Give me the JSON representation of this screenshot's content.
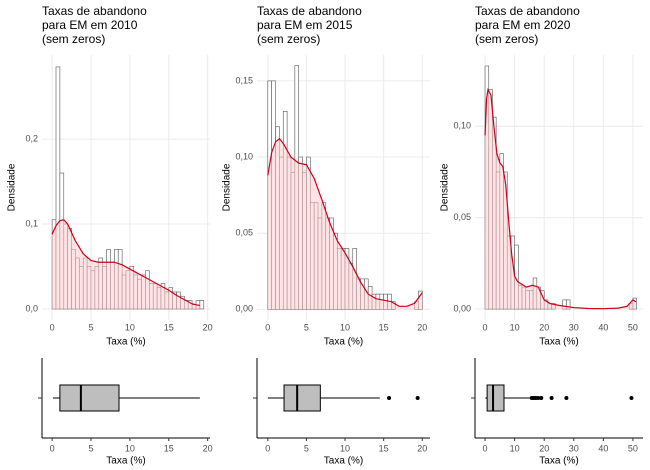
{
  "chart_data": [
    {
      "type": "histogram",
      "title": [
        "Taxas de abandono",
        "para EM em 2010",
        "(sem zeros)"
      ],
      "xlabel": "Taxa (%)",
      "ylabel": "Densidade",
      "bins": [
        0,
        0.5,
        1,
        1.5,
        2,
        2.5,
        3,
        3.5,
        4,
        4.5,
        5,
        5.5,
        6,
        6.5,
        7,
        7.5,
        8,
        8.5,
        9,
        9.5,
        10,
        10.5,
        11,
        11.5,
        12,
        12.5,
        13,
        13.5,
        14,
        14.5,
        15,
        15.5,
        16,
        16.5,
        17,
        17.5,
        18,
        18.5,
        19,
        19.5
      ],
      "values": [
        0.105,
        0.285,
        0.16,
        0.1,
        0.095,
        0.07,
        0.06,
        0.05,
        0.06,
        0.05,
        0.045,
        0.05,
        0.06,
        0.05,
        0.07,
        0.055,
        0.07,
        0.07,
        0.04,
        0.045,
        0.05,
        0.04,
        0.035,
        0.04,
        0.045,
        0.03,
        0.03,
        0.025,
        0.03,
        0.02,
        0.025,
        0.02,
        0.02,
        0.015,
        0.01,
        0.01,
        0.005,
        0.01,
        0.01
      ],
      "density": {
        "x": [
          0,
          0.5,
          1,
          1.5,
          2,
          3,
          4,
          5,
          6,
          7,
          8,
          9,
          10,
          11,
          12,
          13,
          14,
          15,
          16,
          17,
          18,
          19
        ],
        "y": [
          0.088,
          0.098,
          0.104,
          0.105,
          0.1,
          0.08,
          0.065,
          0.057,
          0.055,
          0.055,
          0.055,
          0.052,
          0.047,
          0.042,
          0.037,
          0.032,
          0.027,
          0.022,
          0.016,
          0.011,
          0.006,
          0.004
        ]
      },
      "xlim": [
        -1.3,
        20.3
      ],
      "ylim": [
        -0.013,
        0.299
      ],
      "xticks": [
        0,
        5,
        10,
        15,
        20
      ],
      "yticks": [
        {
          "value": 0,
          "label": "0,0"
        },
        {
          "value": 0.1,
          "label": "0,1"
        },
        {
          "value": 0.2,
          "label": "0,2"
        }
      ],
      "grid": true,
      "color": "#ffffff",
      "line_color": "#c8001e",
      "area_color": "#ffc8cc"
    },
    {
      "type": "histogram",
      "title": [
        "Taxas de abandono",
        "para EM em 2015",
        "(sem zeros)"
      ],
      "xlabel": "Taxa (%)",
      "ylabel": "Densidade",
      "bins": [
        0,
        0.5,
        1,
        1.5,
        2,
        2.5,
        3,
        3.5,
        4,
        4.5,
        5,
        5.5,
        6,
        6.5,
        7,
        7.5,
        8,
        8.5,
        9,
        9.5,
        10,
        10.5,
        11,
        11.5,
        12,
        12.5,
        13,
        13.5,
        14,
        14.5,
        15,
        15.5,
        16,
        16.5,
        17,
        17.5,
        18,
        18.5,
        19,
        19.5,
        20
      ],
      "values": [
        0.15,
        0.15,
        0.12,
        0.1,
        0.13,
        0.1,
        0.09,
        0.16,
        0.1,
        0.09,
        0.1,
        0.07,
        0.07,
        0.06,
        0.07,
        0.06,
        0.06,
        0.05,
        0.04,
        0.04,
        0.04,
        0.03,
        0.04,
        0.02,
        0.02,
        0.02,
        0.015,
        0.01,
        0.01,
        0.01,
        0.01,
        0.01,
        0.005,
        0,
        0,
        0,
        0,
        0,
        0.005,
        0.012
      ],
      "density": {
        "x": [
          0,
          0.5,
          1,
          1.5,
          2,
          3,
          4,
          5,
          6,
          7,
          8,
          9,
          10,
          11,
          12,
          13,
          14,
          15,
          16,
          17,
          18,
          19,
          20
        ],
        "y": [
          0.088,
          0.103,
          0.11,
          0.112,
          0.109,
          0.1,
          0.096,
          0.095,
          0.086,
          0.072,
          0.057,
          0.045,
          0.037,
          0.028,
          0.018,
          0.01,
          0.007,
          0.006,
          0.005,
          0.002,
          0.002,
          0.004,
          0.011
        ]
      },
      "xlim": [
        -1.4,
        21
      ],
      "ylim": [
        -0.007,
        0.167
      ],
      "xticks": [
        0,
        5,
        10,
        15,
        20
      ],
      "yticks": [
        {
          "value": 0,
          "label": "0,00"
        },
        {
          "value": 0.05,
          "label": "0,05"
        },
        {
          "value": 0.1,
          "label": "0,10"
        },
        {
          "value": 0.15,
          "label": "0,15"
        }
      ],
      "grid": true,
      "color": "#ffffff",
      "line_color": "#c8001e",
      "area_color": "#ffc8cc"
    },
    {
      "type": "histogram",
      "title": [
        "Taxas de abandono",
        "para EM em 2020",
        "(sem zeros)"
      ],
      "xlabel": "Taxa (%)",
      "ylabel": "Densidade",
      "bins": [
        0,
        1.25,
        2.5,
        3.75,
        5,
        6.25,
        7.5,
        8.75,
        10,
        11.25,
        12.5,
        13.75,
        15,
        16.25,
        17.5,
        18.75,
        20,
        21.25,
        22.5,
        23.75,
        25,
        26.25,
        27.5,
        28.75,
        30,
        31.25,
        32.5,
        33.75,
        35,
        36.25,
        37.5,
        38.75,
        40,
        41.25,
        42.5,
        43.75,
        45,
        46.25,
        47.5,
        48.75,
        50,
        51.25
      ],
      "values": [
        0.133,
        0.12,
        0.105,
        0.075,
        0.085,
        0.075,
        0.04,
        0.04,
        0.035,
        0.013,
        0.012,
        0.01,
        0.01,
        0.017,
        0.012,
        0.01,
        0.005,
        0.003,
        0.003,
        0,
        0,
        0.005,
        0.005,
        0,
        0,
        0,
        0,
        0,
        0,
        0,
        0,
        0,
        0,
        0,
        0,
        0,
        0,
        0,
        0,
        0.003,
        0.006
      ],
      "density": {
        "x": [
          0,
          0.5,
          1,
          2,
          3,
          4,
          5,
          6,
          7,
          8,
          9,
          10,
          11,
          12,
          13,
          14,
          16,
          18,
          20,
          22,
          25,
          30,
          35,
          40,
          45,
          48,
          50,
          51
        ],
        "y": [
          0.095,
          0.115,
          0.12,
          0.117,
          0.1,
          0.085,
          0.08,
          0.078,
          0.068,
          0.048,
          0.03,
          0.018,
          0.015,
          0.014,
          0.013,
          0.012,
          0.013,
          0.012,
          0.005,
          0.003,
          0.002,
          0.0008,
          0.0003,
          0.0002,
          0.0005,
          0.0015,
          0.005,
          0.004
        ]
      },
      "xlim": [
        -3.4,
        53.4
      ],
      "ylim": [
        -0.006,
        0.139
      ],
      "xticks": [
        0,
        10,
        20,
        30,
        40,
        50
      ],
      "yticks": [
        {
          "value": 0,
          "label": "0,00"
        },
        {
          "value": 0.05,
          "label": "0,05"
        },
        {
          "value": 0.1,
          "label": "0,10"
        }
      ],
      "grid": true,
      "color": "#ffffff",
      "line_color": "#c8001e",
      "area_color": "#ffc8cc"
    },
    {
      "type": "box",
      "xlabel": "Taxa (%)",
      "xlim": [
        -1.3,
        20.3
      ],
      "xticks": [
        0,
        5,
        10,
        15,
        20
      ],
      "whisker_low": 0.1,
      "q1": 1,
      "median": 3.7,
      "q3": 8.6,
      "whisker_high": 19,
      "outliers": [],
      "color": "#bebebe"
    },
    {
      "type": "box",
      "xlabel": "Taxa (%)",
      "xlim": [
        -1.4,
        21
      ],
      "xticks": [
        0,
        5,
        10,
        15,
        20
      ],
      "whisker_low": 0,
      "q1": 2.1,
      "median": 3.8,
      "q3": 6.8,
      "whisker_high": 14.5,
      "outliers": [
        15.7,
        19.4
      ],
      "color": "#bebebe"
    },
    {
      "type": "box",
      "xlabel": "Taxa (%)",
      "xlim": [
        -3.4,
        53.4
      ],
      "xticks": [
        0,
        10,
        20,
        30,
        40,
        50
      ],
      "whisker_low": 0.1,
      "q1": 0.7,
      "median": 2.7,
      "q3": 6.4,
      "whisker_high": 15.2,
      "outliers": [
        15.8,
        16.5,
        17.2,
        18,
        19,
        22.5,
        27.5,
        49.5
      ],
      "color": "#bebebe"
    }
  ]
}
